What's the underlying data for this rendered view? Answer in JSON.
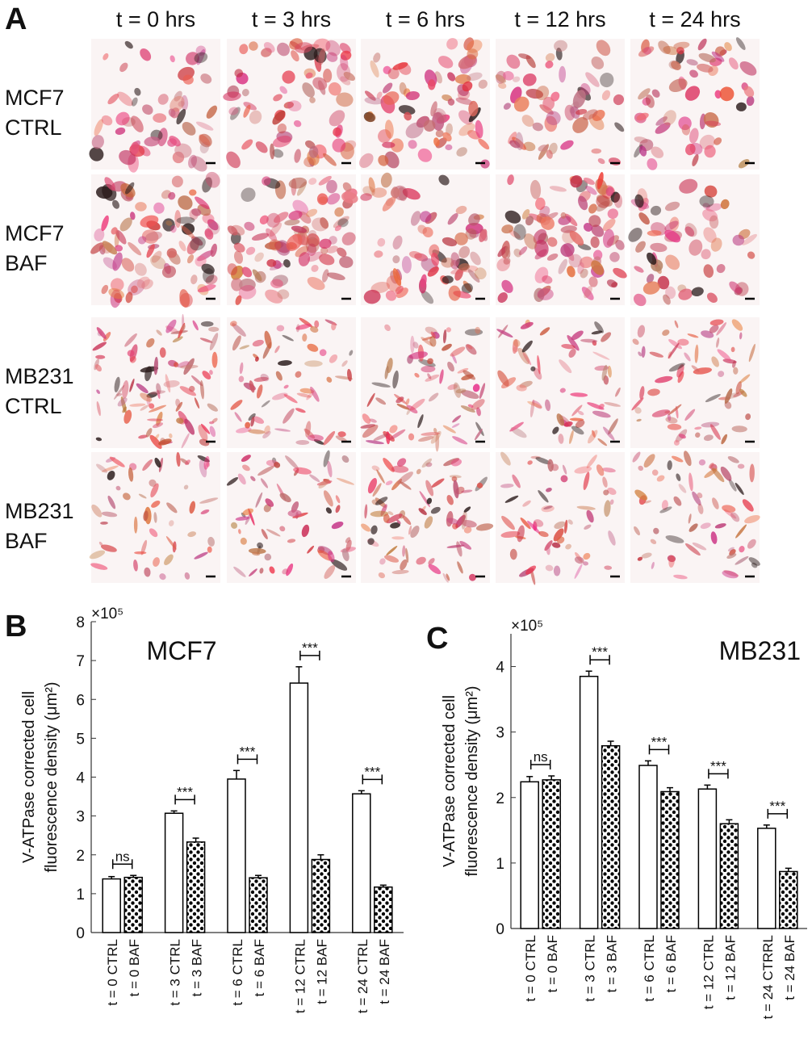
{
  "panel_a": {
    "label": "A",
    "columns": [
      "t = 0 hrs",
      "t = 3 hrs",
      "t = 6 hrs",
      "t = 12 hrs",
      "t = 24 hrs"
    ],
    "rows": [
      [
        "MCF7",
        "CTRL"
      ],
      [
        "MCF7",
        "BAF"
      ],
      [
        "MB231",
        "CTRL"
      ],
      [
        "MB231",
        "BAF"
      ]
    ]
  },
  "chart_data": [
    {
      "type": "bar",
      "panel": "B",
      "title": "MCF7",
      "ylabel": [
        "V-ATPase corrected cell",
        "fluorescence density (μm²)"
      ],
      "multiplier": "×10⁵",
      "categories": [
        "t = 0 CTRL",
        "t = 0 BAF",
        "t = 3 CTRL",
        "t = 3 BAF",
        "t = 6 CTRL",
        "t = 6 BAF",
        "t = 12 CTRL",
        "t = 12 BAF",
        "t = 24 CTRL",
        "t = 24 BAF"
      ],
      "values": [
        1.38,
        1.42,
        3.07,
        2.33,
        3.95,
        1.41,
        6.42,
        1.88,
        3.57,
        1.17
      ],
      "errors": [
        0.06,
        0.05,
        0.06,
        0.1,
        0.22,
        0.06,
        0.42,
        0.12,
        0.08,
        0.05
      ],
      "annotations": [
        "ns",
        "***",
        "***",
        "***",
        "***"
      ],
      "ylim": [
        0,
        8
      ],
      "yticks": [
        0,
        1,
        2,
        3,
        4,
        5,
        6,
        7,
        8
      ],
      "color": "#000000"
    },
    {
      "type": "bar",
      "panel": "C",
      "title": "MB231",
      "ylabel": [
        "V-ATPase corrected cell",
        "fluorescence density (μm²)"
      ],
      "multiplier": "×10⁵",
      "categories": [
        "t = 0 CTRL",
        "t = 0 BAF",
        "t = 3 CTRL",
        "t = 3 BAF",
        "t = 6 CTRL",
        "t = 6 BAF",
        "t = 12 CTRL",
        "t = 12 BAF",
        "t = 24 CTRRL",
        "t = 24 BAF"
      ],
      "values": [
        2.24,
        2.27,
        3.85,
        2.79,
        2.49,
        2.09,
        2.13,
        1.6,
        1.53,
        0.87
      ],
      "errors": [
        0.08,
        0.06,
        0.08,
        0.07,
        0.07,
        0.06,
        0.06,
        0.06,
        0.05,
        0.05
      ],
      "annotations": [
        "ns",
        "***",
        "***",
        "***",
        "***"
      ],
      "ylim": [
        0,
        4.5
      ],
      "yticks": [
        0,
        1,
        2,
        3,
        4
      ],
      "color": "#000000"
    }
  ]
}
